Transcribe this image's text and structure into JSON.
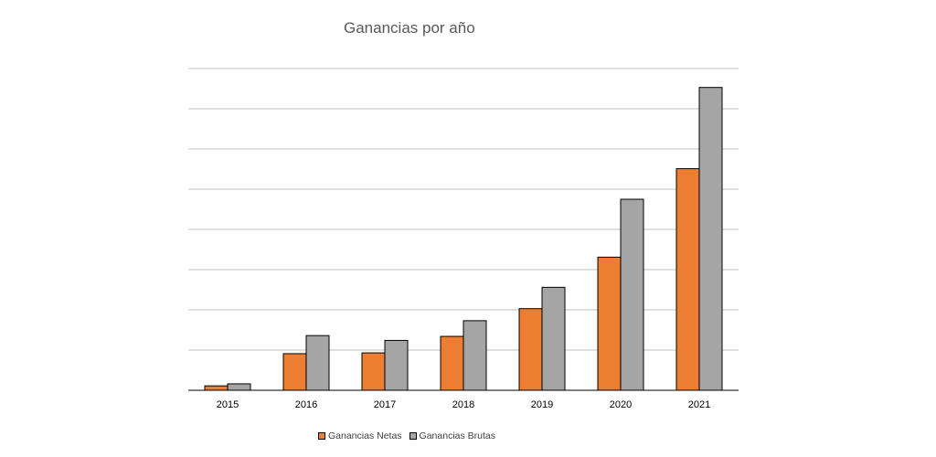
{
  "chart_data": {
    "type": "bar",
    "title": "Ganancias por año",
    "categories": [
      "2015",
      "2016",
      "2017",
      "2018",
      "2019",
      "2020",
      "2021"
    ],
    "series": [
      {
        "name": "Ganancias Netas",
        "color": "#ED7D31",
        "values": [
          1.1,
          9.1,
          9.3,
          13.4,
          20.3,
          33.1,
          55.1
        ]
      },
      {
        "name": "Ganancias Brutas",
        "color": "#A5A5A5",
        "values": [
          1.6,
          13.6,
          12.4,
          17.3,
          25.6,
          47.5,
          75.3
        ]
      }
    ],
    "ylim": [
      0,
      80
    ],
    "y_gridlines": 8,
    "y_axis_labels_shown": false,
    "grid": true,
    "legend_position": "bottom"
  }
}
